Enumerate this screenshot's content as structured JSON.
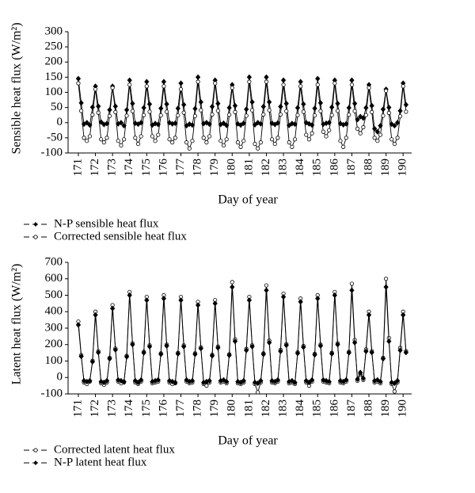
{
  "chart_data": [
    {
      "type": "line",
      "ylabel": "Sensible heat flux (W/m²)",
      "xlabel": "Day of year",
      "xlim": [
        170.4,
        190.5
      ],
      "xticks": [
        171,
        172,
        173,
        174,
        175,
        176,
        177,
        178,
        179,
        180,
        181,
        182,
        183,
        184,
        185,
        186,
        187,
        188,
        189,
        190
      ],
      "ylim": [
        -100,
        300
      ],
      "yticks": [
        -100,
        -50,
        0,
        50,
        100,
        150,
        200,
        250,
        300
      ],
      "x": [
        171,
        171.17,
        171.33,
        171.5,
        171.67,
        171.83,
        172,
        172.17,
        172.33,
        172.5,
        172.67,
        172.83,
        173,
        173.17,
        173.33,
        173.5,
        173.67,
        173.83,
        174,
        174.17,
        174.33,
        174.5,
        174.67,
        174.83,
        175,
        175.17,
        175.33,
        175.5,
        175.67,
        175.83,
        176,
        176.17,
        176.33,
        176.5,
        176.67,
        176.83,
        177,
        177.17,
        177.33,
        177.5,
        177.67,
        177.83,
        178,
        178.17,
        178.33,
        178.5,
        178.67,
        178.83,
        179,
        179.17,
        179.33,
        179.5,
        179.67,
        179.83,
        180,
        180.17,
        180.33,
        180.5,
        180.67,
        180.83,
        181,
        181.17,
        181.33,
        181.5,
        181.67,
        181.83,
        182,
        182.17,
        182.33,
        182.5,
        182.67,
        182.83,
        183,
        183.17,
        183.33,
        183.5,
        183.67,
        183.83,
        184,
        184.17,
        184.33,
        184.5,
        184.67,
        184.83,
        185,
        185.17,
        185.33,
        185.5,
        185.67,
        185.83,
        186,
        186.17,
        186.33,
        186.5,
        186.67,
        186.83,
        187,
        187.17,
        187.33,
        187.5,
        187.67,
        187.83,
        188,
        188.17,
        188.33,
        188.5,
        188.67,
        188.83,
        189,
        189.17,
        189.33,
        189.5,
        189.67,
        189.83,
        190,
        190.17
      ],
      "series": [
        {
          "name": "N-P sensible heat flux",
          "color": "#000000",
          "marker": "diamond",
          "values": [
            145,
            65,
            -5,
            0,
            -8,
            51,
            120,
            54,
            2,
            -6,
            -3,
            42,
            120,
            54,
            -4,
            0,
            -10,
            42,
            140,
            63,
            -2,
            -5,
            0,
            49,
            135,
            61,
            -8,
            -3,
            -6,
            47,
            135,
            61,
            0,
            -4,
            -2,
            47,
            130,
            59,
            -10,
            -5,
            -8,
            46,
            150,
            68,
            -3,
            0,
            -5,
            53,
            140,
            63,
            -6,
            -2,
            -9,
            49,
            125,
            56,
            -4,
            -8,
            -2,
            44,
            150,
            68,
            -7,
            0,
            -4,
            53,
            150,
            68,
            -2,
            -6,
            -1,
            53,
            140,
            63,
            -9,
            -3,
            -5,
            49,
            135,
            61,
            0,
            -4,
            -8,
            47,
            145,
            65,
            -5,
            -2,
            0,
            51,
            140,
            63,
            -3,
            -7,
            -4,
            49,
            140,
            63,
            10,
            20,
            15,
            49,
            125,
            56,
            -20,
            -30,
            -10,
            44,
            110,
            50,
            -5,
            -10,
            0,
            39,
            130,
            59
          ]
        },
        {
          "name": "Corrected sensible heat flux",
          "color": "#000000",
          "marker": "circle",
          "values": [
            130,
            39,
            -50,
            -60,
            -45,
            26,
            110,
            33,
            -55,
            -65,
            -50,
            22,
            115,
            35,
            -60,
            -75,
            -55,
            23,
            125,
            38,
            -50,
            -70,
            -45,
            25,
            120,
            36,
            -45,
            -60,
            -40,
            24,
            120,
            36,
            -55,
            -65,
            -50,
            24,
            110,
            33,
            -65,
            -85,
            -60,
            22,
            135,
            41,
            -50,
            -65,
            -45,
            27,
            130,
            39,
            -60,
            -75,
            -55,
            26,
            115,
            35,
            -65,
            -80,
            -60,
            23,
            135,
            41,
            -70,
            -85,
            -65,
            27,
            135,
            41,
            -55,
            -70,
            -50,
            27,
            125,
            38,
            -65,
            -80,
            -55,
            25,
            120,
            36,
            -40,
            -55,
            -35,
            24,
            125,
            38,
            -30,
            -45,
            -25,
            25,
            130,
            39,
            -60,
            -80,
            -50,
            26,
            125,
            38,
            -20,
            -35,
            -15,
            25,
            115,
            35,
            -50,
            -60,
            -40,
            23,
            105,
            32,
            -55,
            -70,
            -50,
            21,
            120,
            36
          ]
        }
      ]
    },
    {
      "type": "line",
      "ylabel": "Latent heat flux (W/m²)",
      "xlabel": "Day of year",
      "xlim": [
        170.4,
        190.5
      ],
      "xticks": [
        171,
        172,
        173,
        174,
        175,
        176,
        177,
        178,
        179,
        180,
        181,
        182,
        183,
        184,
        185,
        186,
        187,
        188,
        189,
        190
      ],
      "ylim": [
        -100,
        700
      ],
      "yticks": [
        -100,
        0,
        100,
        200,
        300,
        400,
        500,
        600,
        700
      ],
      "x": [
        171,
        171.17,
        171.33,
        171.5,
        171.67,
        171.83,
        172,
        172.17,
        172.33,
        172.5,
        172.67,
        172.83,
        173,
        173.17,
        173.33,
        173.5,
        173.67,
        173.83,
        174,
        174.17,
        174.33,
        174.5,
        174.67,
        174.83,
        175,
        175.17,
        175.33,
        175.5,
        175.67,
        175.83,
        176,
        176.17,
        176.33,
        176.5,
        176.67,
        176.83,
        177,
        177.17,
        177.33,
        177.5,
        177.67,
        177.83,
        178,
        178.17,
        178.33,
        178.5,
        178.67,
        178.83,
        179,
        179.17,
        179.33,
        179.5,
        179.67,
        179.83,
        180,
        180.17,
        180.33,
        180.5,
        180.67,
        180.83,
        181,
        181.17,
        181.33,
        181.5,
        181.67,
        181.83,
        182,
        182.17,
        182.33,
        182.5,
        182.67,
        182.83,
        183,
        183.17,
        183.33,
        183.5,
        183.67,
        183.83,
        184,
        184.17,
        184.33,
        184.5,
        184.67,
        184.83,
        185,
        185.17,
        185.33,
        185.5,
        185.67,
        185.83,
        186,
        186.17,
        186.33,
        186.5,
        186.67,
        186.83,
        187,
        187.17,
        187.33,
        187.5,
        187.67,
        187.83,
        188,
        188.17,
        188.33,
        188.5,
        188.67,
        188.83,
        189,
        189.17,
        189.33,
        189.5,
        189.67,
        189.83,
        190,
        190.17
      ],
      "series": [
        {
          "name": "Corrected latent heat flux",
          "color": "#000000",
          "marker": "circle",
          "values": [
            340,
            136,
            -30,
            -40,
            -25,
            102,
            400,
            160,
            -35,
            -45,
            -30,
            120,
            440,
            176,
            -25,
            -35,
            -30,
            132,
            520,
            208,
            -30,
            -40,
            -25,
            156,
            490,
            196,
            -35,
            -30,
            -25,
            147,
            500,
            200,
            -30,
            -40,
            -35,
            150,
            490,
            196,
            -25,
            -35,
            -30,
            147,
            460,
            184,
            -40,
            -50,
            -30,
            138,
            470,
            188,
            -30,
            -25,
            -35,
            141,
            580,
            232,
            -35,
            -40,
            -30,
            174,
            490,
            196,
            -40,
            -90,
            -30,
            147,
            560,
            224,
            -30,
            -35,
            -25,
            168,
            510,
            204,
            -35,
            -30,
            -40,
            153,
            480,
            192,
            -30,
            -50,
            -25,
            144,
            500,
            200,
            -25,
            -30,
            -35,
            150,
            520,
            208,
            -30,
            -35,
            -25,
            156,
            570,
            228,
            -20,
            20,
            -15,
            171,
            400,
            160,
            -30,
            -25,
            -35,
            120,
            600,
            240,
            -40,
            -85,
            -30,
            180,
            400,
            160
          ]
        },
        {
          "name": "N-P latent heat flux",
          "color": "#000000",
          "marker": "diamond",
          "values": [
            320,
            128,
            -20,
            -25,
            -20,
            96,
            380,
            152,
            -25,
            -30,
            -20,
            114,
            420,
            168,
            -15,
            -20,
            -25,
            126,
            500,
            200,
            -20,
            -30,
            -15,
            150,
            470,
            188,
            -25,
            -20,
            -15,
            141,
            480,
            192,
            -20,
            -25,
            -30,
            144,
            470,
            188,
            -15,
            -25,
            -20,
            141,
            440,
            176,
            -30,
            -25,
            -20,
            132,
            450,
            180,
            -20,
            -15,
            -25,
            135,
            550,
            220,
            -25,
            -30,
            -20,
            165,
            470,
            188,
            -30,
            -35,
            -20,
            141,
            530,
            212,
            -20,
            -25,
            -15,
            159,
            490,
            196,
            -25,
            -20,
            -30,
            147,
            460,
            184,
            -20,
            -30,
            -15,
            138,
            480,
            192,
            -15,
            -20,
            -25,
            144,
            500,
            200,
            -20,
            -25,
            -15,
            150,
            530,
            212,
            -10,
            30,
            -5,
            159,
            380,
            152,
            -20,
            -15,
            -25,
            114,
            550,
            220,
            -30,
            -35,
            -20,
            165,
            380,
            152
          ]
        }
      ]
    }
  ]
}
